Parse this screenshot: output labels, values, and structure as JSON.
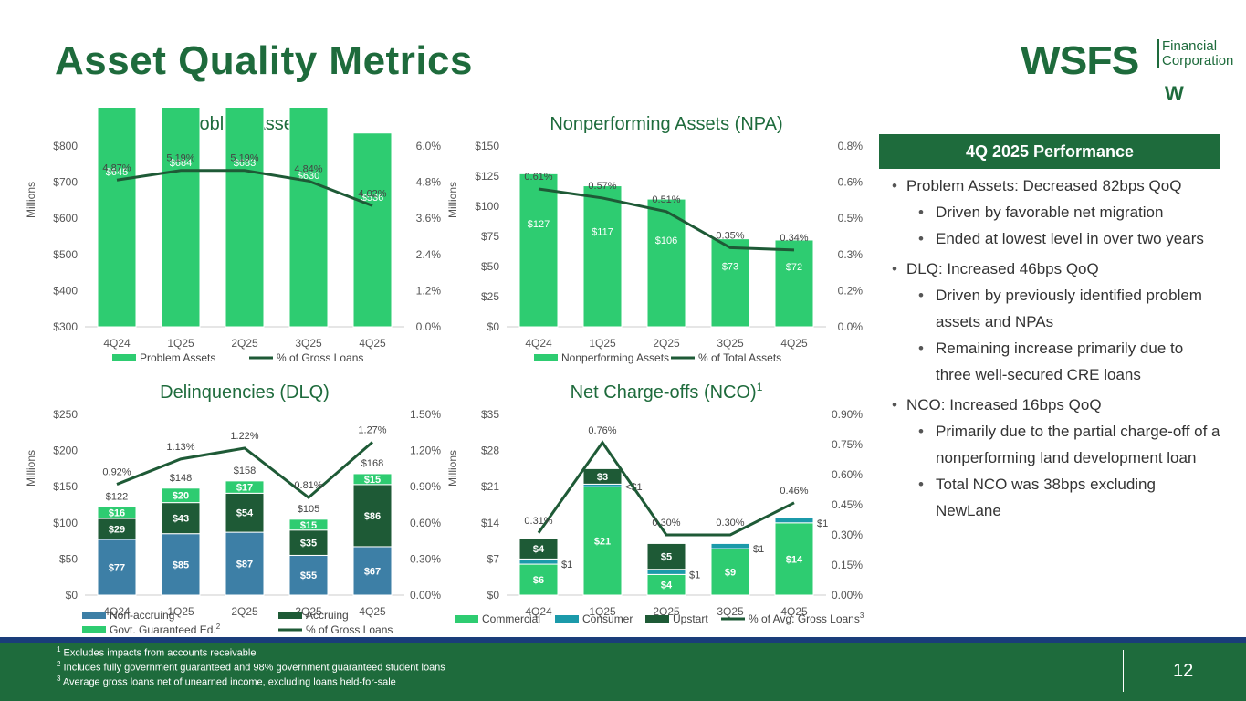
{
  "page": {
    "title": "Asset Quality Metrics",
    "logo": {
      "main": "WSFS",
      "line1": "Financial",
      "line2": "Corporation",
      "mark": "W"
    },
    "page_number": "12"
  },
  "colors": {
    "dark_green": "#1e6b3c",
    "bright_green": "#2ecc71",
    "teal": "#1b9aaa",
    "steel": "#3d7fa6",
    "line": "#1e5a36"
  },
  "performance": {
    "heading": "4Q 2025 Performance",
    "items": [
      {
        "level": 1,
        "text": "Problem Assets: Decreased 82bps QoQ"
      },
      {
        "level": 2,
        "text": "Driven by favorable net migration"
      },
      {
        "level": 2,
        "text": "Ended at lowest level in over two years"
      },
      {
        "level": 1,
        "text": "DLQ: Increased 46bps QoQ"
      },
      {
        "level": 2,
        "text": "Driven by previously identified problem assets and NPAs"
      },
      {
        "level": 2,
        "text": "Remaining increase primarily due to three well-secured CRE loans"
      },
      {
        "level": 1,
        "text": "NCO: Increased 16bps QoQ"
      },
      {
        "level": 2,
        "text": "Primarily due to the partial charge-off of a nonperforming land development loan"
      },
      {
        "level": 2,
        "text": "Total NCO was 38bps excluding NewLane"
      }
    ]
  },
  "footnotes": [
    {
      "num": "1",
      "text": "Excludes impacts from accounts receivable"
    },
    {
      "num": "2",
      "text": "Includes fully government guaranteed and 98% government guaranteed student loans"
    },
    {
      "num": "3",
      "text": "Average gross loans net of unearned income, excluding loans held-for-sale"
    }
  ],
  "chart_data": [
    {
      "id": "problem",
      "type": "bar",
      "title": "Problem Assets",
      "title_sup": "",
      "ylabel": "Millions",
      "categories": [
        "4Q24",
        "1Q25",
        "2Q25",
        "3Q25",
        "4Q25"
      ],
      "ylim": [
        300,
        800
      ],
      "yticks": [
        "$300",
        "$400",
        "$500",
        "$600",
        "$700",
        "$800"
      ],
      "y2lim": [
        0,
        6.0
      ],
      "y2ticks": [
        "0.0%",
        "1.2%",
        "2.4%",
        "3.6%",
        "4.8%",
        "6.0%"
      ],
      "series": [
        {
          "name": "Problem Assets",
          "color": "#2ecc71",
          "values": [
            645,
            684,
            683,
            630,
            536
          ],
          "labels": [
            "$645",
            "$684",
            "$683",
            "$630",
            "$536"
          ]
        }
      ],
      "line": {
        "name": "% of Gross Loans",
        "values": [
          4.87,
          5.19,
          5.19,
          4.84,
          4.02
        ],
        "labels": [
          "4.87%",
          "5.19%",
          "5.19%",
          "4.84%",
          "4.02%"
        ]
      },
      "totals": [],
      "extra_labels": [],
      "legend": [
        {
          "name": "Problem Assets",
          "kind": "box",
          "color": "#2ecc71"
        },
        {
          "name": "% of Gross Loans",
          "kind": "line",
          "color": "#1e5a36"
        }
      ]
    },
    {
      "id": "npa",
      "type": "bar",
      "title": "Nonperforming Assets (NPA)",
      "title_sup": "",
      "ylabel": "Millions",
      "categories": [
        "4Q24",
        "1Q25",
        "2Q25",
        "3Q25",
        "4Q25"
      ],
      "ylim": [
        0,
        150
      ],
      "yticks": [
        "$0",
        "$25",
        "$50",
        "$75",
        "$100",
        "$125",
        "$150"
      ],
      "y2lim": [
        0,
        0.8
      ],
      "y2ticks": [
        "0.0%",
        "0.2%",
        "0.3%",
        "0.5%",
        "0.6%",
        "0.8%"
      ],
      "series": [
        {
          "name": "Nonperforming Assets",
          "color": "#2ecc71",
          "values": [
            127,
            117,
            106,
            73,
            72
          ],
          "labels": [
            "$127",
            "$117",
            "$106",
            "$73",
            "$72"
          ]
        }
      ],
      "line": {
        "name": "% of Total Assets",
        "values": [
          0.61,
          0.57,
          0.51,
          0.35,
          0.34
        ],
        "labels": [
          "0.61%",
          "0.57%",
          "0.51%",
          "0.35%",
          "0.34%"
        ]
      },
      "totals": [],
      "extra_labels": [],
      "legend": [
        {
          "name": "Nonperforming Assets",
          "kind": "box",
          "color": "#2ecc71"
        },
        {
          "name": "% of Total Assets",
          "kind": "line",
          "color": "#1e5a36"
        }
      ]
    },
    {
      "id": "dlq",
      "type": "stacked-bar",
      "title": "Delinquencies (DLQ)",
      "title_sup": "",
      "ylabel": "Millions",
      "categories": [
        "4Q24",
        "1Q25",
        "2Q25",
        "3Q25",
        "4Q25"
      ],
      "ylim": [
        0,
        250
      ],
      "yticks": [
        "$0",
        "$50",
        "$100",
        "$150",
        "$200",
        "$250"
      ],
      "y2lim": [
        0,
        1.5
      ],
      "y2ticks": [
        "0.00%",
        "0.30%",
        "0.60%",
        "0.90%",
        "1.20%",
        "1.50%"
      ],
      "series": [
        {
          "name": "Non-accruing",
          "color": "#3d7fa6",
          "values": [
            77,
            85,
            87,
            55,
            67
          ],
          "labels": [
            "$77",
            "$85",
            "$87",
            "$55",
            "$67"
          ]
        },
        {
          "name": "Accruing",
          "color": "#1e5a36",
          "values": [
            29,
            43,
            54,
            35,
            86
          ],
          "labels": [
            "$29",
            "$43",
            "$54",
            "$35",
            "$86"
          ]
        },
        {
          "name": "Govt. Guaranteed Ed.",
          "color": "#2ecc71",
          "values": [
            16,
            20,
            17,
            15,
            15
          ],
          "labels": [
            "$16",
            "$20",
            "$17",
            "$15",
            "$15"
          ]
        }
      ],
      "line": {
        "name": "% of Gross Loans",
        "values": [
          0.92,
          1.13,
          1.22,
          0.81,
          1.27
        ],
        "labels": [
          "0.92%",
          "1.13%",
          "1.22%",
          "0.81%",
          "1.27%"
        ]
      },
      "totals": [
        "$122",
        "$148",
        "$158",
        "$105",
        "$168"
      ],
      "extra_labels": [],
      "legend": [
        {
          "name": "Non-accruing",
          "kind": "box",
          "color": "#3d7fa6"
        },
        {
          "name": "Accruing",
          "kind": "box",
          "color": "#1e5a36"
        },
        {
          "name": "Govt. Guaranteed Ed.",
          "kind": "box",
          "color": "#2ecc71",
          "sup": "2"
        },
        {
          "name": "% of Gross Loans",
          "kind": "line",
          "color": "#1e5a36"
        }
      ]
    },
    {
      "id": "nco",
      "type": "stacked-bar",
      "title": "Net Charge-offs (NCO)",
      "title_sup": "1",
      "ylabel": "Millions",
      "categories": [
        "4Q24",
        "1Q25",
        "2Q25",
        "3Q25",
        "4Q25"
      ],
      "ylim": [
        0,
        35
      ],
      "yticks": [
        "$0",
        "$7",
        "$14",
        "$21",
        "$28",
        "$35"
      ],
      "y2lim": [
        0,
        0.9
      ],
      "y2ticks": [
        "0.00%",
        "0.15%",
        "0.30%",
        "0.45%",
        "0.60%",
        "0.75%",
        "0.90%"
      ],
      "series": [
        {
          "name": "Commercial",
          "color": "#2ecc71",
          "values": [
            6,
            21,
            4,
            9,
            14
          ],
          "labels": [
            "$6",
            "$21",
            "$4",
            "$9",
            "$14"
          ]
        },
        {
          "name": "Consumer",
          "color": "#1b9aaa",
          "values": [
            1,
            0.5,
            1,
            1,
            1
          ],
          "labels": [
            "",
            "",
            "",
            "",
            ""
          ]
        },
        {
          "name": "Upstart",
          "color": "#1e5a36",
          "values": [
            4,
            3,
            5,
            0,
            0
          ],
          "labels": [
            "$4",
            "$3",
            "$5",
            "",
            ""
          ]
        }
      ],
      "line": {
        "name": "% of Avg. Gross Loans",
        "values": [
          0.31,
          0.76,
          0.3,
          0.3,
          0.46
        ],
        "labels": [
          "0.31%",
          "0.76%",
          "0.30%",
          "0.30%",
          "0.46%"
        ]
      },
      "totals": [],
      "extra_labels": [
        "$1",
        "<$1",
        "$1",
        "$1",
        "$1"
      ],
      "legend": [
        {
          "name": "Commercial",
          "kind": "box",
          "color": "#2ecc71"
        },
        {
          "name": "Consumer",
          "kind": "box",
          "color": "#1b9aaa"
        },
        {
          "name": "Upstart",
          "kind": "box",
          "color": "#1e5a36"
        },
        {
          "name": "% of Avg. Gross Loans",
          "kind": "line",
          "color": "#1e5a36",
          "sup": "3"
        }
      ]
    }
  ]
}
